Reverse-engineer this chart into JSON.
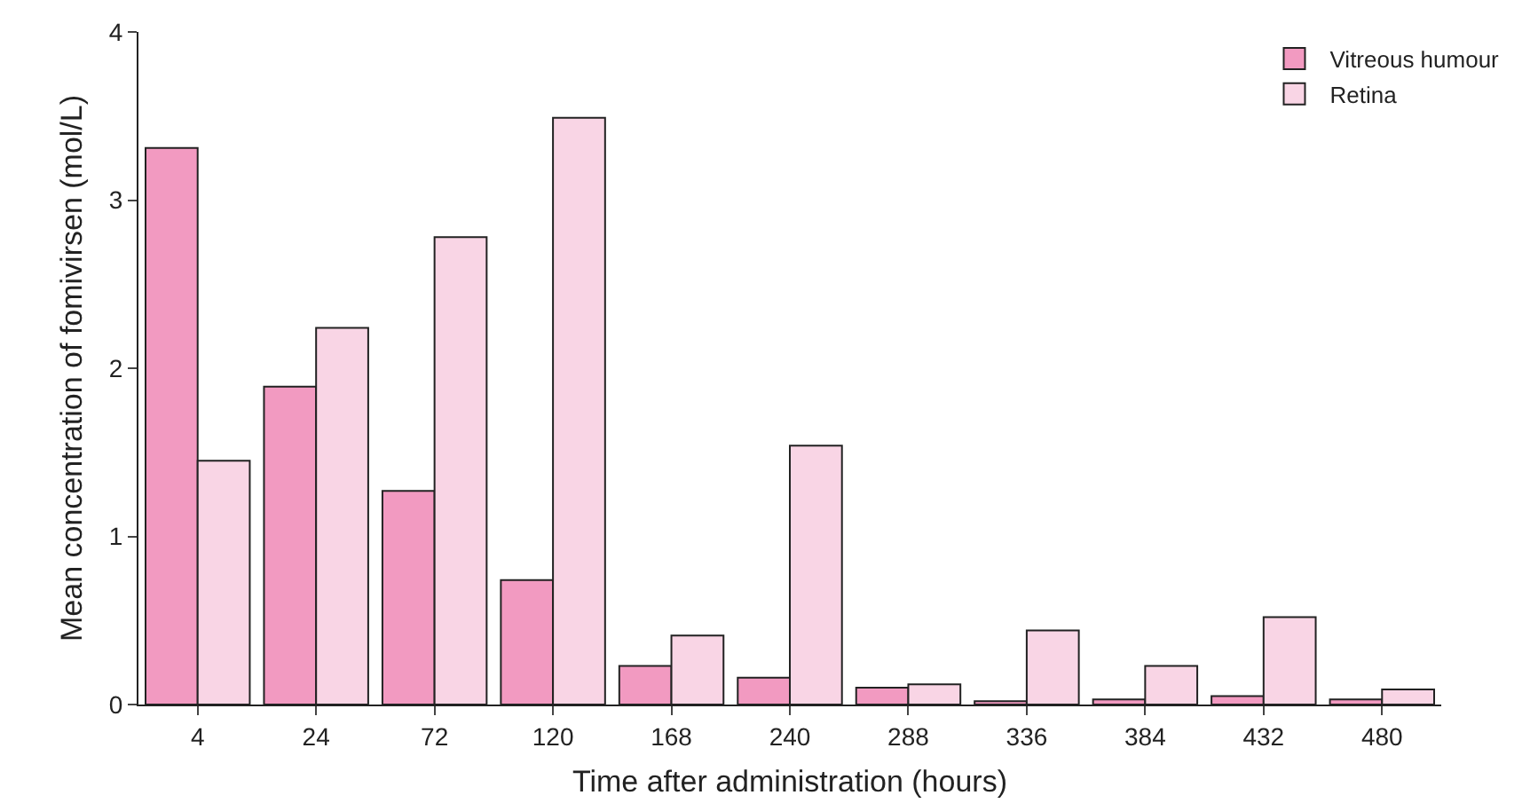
{
  "chart_data": {
    "type": "bar",
    "xlabel": "Time after administration (hours)",
    "ylabel": "Mean concentration of fomivirsen (mol/L)",
    "categories": [
      "4",
      "24",
      "72",
      "120",
      "168",
      "240",
      "288",
      "336",
      "384",
      "432",
      "480"
    ],
    "series": [
      {
        "name": "Vitreous humour",
        "color": "#f29ac1",
        "values": [
          3.31,
          1.89,
          1.27,
          0.74,
          0.23,
          0.16,
          0.1,
          0.02,
          0.03,
          0.05,
          0.03
        ]
      },
      {
        "name": "Retina",
        "color": "#f9d5e5",
        "values": [
          1.45,
          2.24,
          2.78,
          3.49,
          0.41,
          1.54,
          0.12,
          0.44,
          0.23,
          0.52,
          0.09
        ]
      }
    ],
    "ylim": [
      0,
      4
    ],
    "yticks": [
      0,
      1,
      2,
      3,
      4
    ],
    "grid": false,
    "legend": "top right"
  }
}
